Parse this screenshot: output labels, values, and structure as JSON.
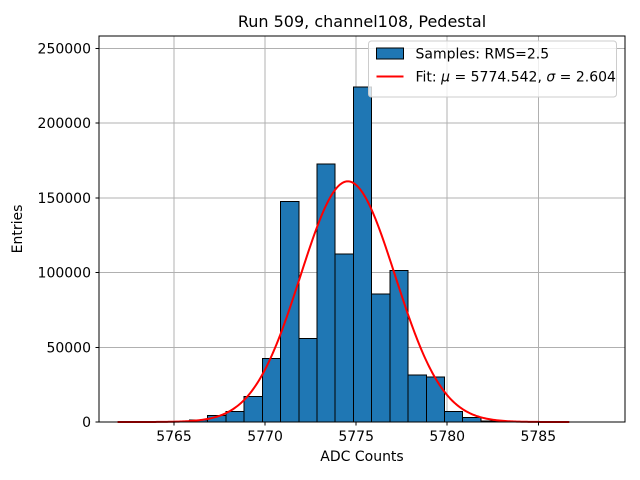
{
  "figure": {
    "background": "#ffffff"
  },
  "chart_data": {
    "type": "bar",
    "subtype": "histogram",
    "title": "Run 509, channel108, Pedestal",
    "xlabel": "ADC Counts",
    "ylabel": "Entries",
    "xlim": [
      5760.88,
      5789.76
    ],
    "ylim": [
      0,
      258200
    ],
    "xticks": [
      5765,
      5770,
      5775,
      5780,
      5785
    ],
    "yticks": [
      0,
      50000,
      100000,
      150000,
      200000,
      250000
    ],
    "grid": true,
    "colors": {
      "bar_fill": "#1f77b4",
      "bar_edge": "#000000",
      "fit_line": "#ff0000",
      "grid": "#b0b0b0",
      "spine": "#000000",
      "text": "#000000",
      "legend_border": "#cccccc",
      "legend_bg": "#ffffff"
    },
    "histogram": {
      "bin_width": 1,
      "bin_left_edges": [
        5765.85,
        5766.85,
        5767.85,
        5768.85,
        5769.85,
        5770.85,
        5771.85,
        5772.85,
        5773.85,
        5774.85,
        5775.85,
        5776.85,
        5777.85,
        5778.85,
        5779.85,
        5780.85,
        5781.85
      ],
      "counts": [
        1500,
        4500,
        7000,
        17000,
        42500,
        147500,
        56000,
        172500,
        112500,
        224000,
        85500,
        101500,
        31500,
        30000,
        7000,
        3000,
        700
      ]
    },
    "fit": {
      "mu": 5774.542,
      "sigma": 2.604,
      "amplitude": 161000,
      "x_start": 5761.9,
      "x_end": 5786.7
    },
    "legend": {
      "position": "upper right",
      "entries": [
        {
          "type": "patch",
          "label": "Samples: RMS=2.5"
        },
        {
          "type": "line",
          "label": "Fit: μ = 5774.542, σ = 2.604"
        }
      ]
    }
  }
}
